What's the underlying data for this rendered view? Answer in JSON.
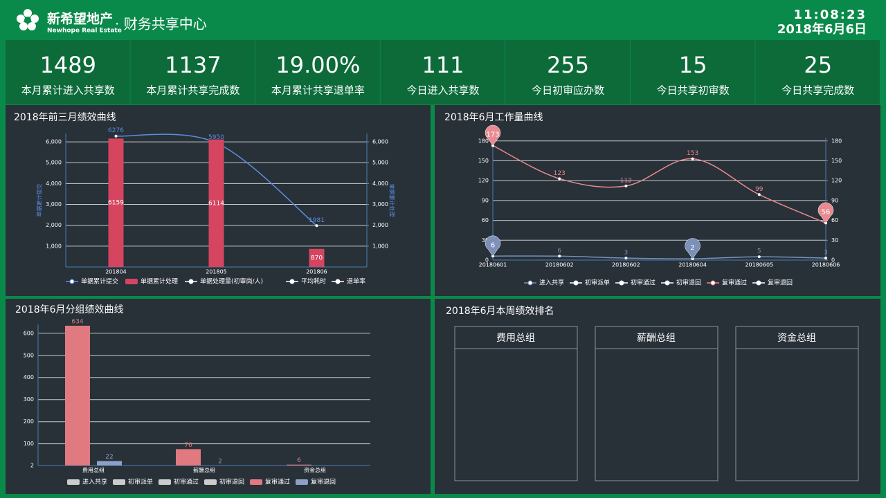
{
  "header": {
    "brand": "新希望地产",
    "brand_en": "Newhope Real Estate",
    "system": "· 财务共享中心",
    "time": "11:08:23",
    "date": "2018年6月6日"
  },
  "kpis": [
    {
      "value": "1489",
      "label": "本月累计进入共享数"
    },
    {
      "value": "1137",
      "label": "本月累计共享完成数"
    },
    {
      "value": "19.00%",
      "label": "本月累计共享退单率"
    },
    {
      "value": "111",
      "label": "今日进入共享数"
    },
    {
      "value": "255",
      "label": "今日初审应办数"
    },
    {
      "value": "15",
      "label": "今日共享初审数"
    },
    {
      "value": "25",
      "label": "今日共享完成数"
    }
  ],
  "chart_data": [
    {
      "type": "bar",
      "title": "2018年前三月绩效曲线",
      "categories": [
        "201804",
        "201805",
        "201806"
      ],
      "series": [
        {
          "name": "单据累计提交",
          "type": "line",
          "color": "#5b8fe0",
          "values": [
            6276,
            5950,
            1981
          ]
        },
        {
          "name": "单据累计处理",
          "type": "bar",
          "color": "#d64560",
          "values": [
            6159,
            6114,
            870
          ]
        },
        {
          "name": "单据处理量(初审岗/人)",
          "type": "line",
          "color": "#ffffff"
        },
        {
          "name": "平均耗时",
          "type": "line",
          "color": "#ffffff"
        },
        {
          "name": "退单率",
          "type": "line",
          "color": "#ffffff"
        }
      ],
      "ylabel": "单据累计提交",
      "y2label": "单据累计处理",
      "ylim": [
        0,
        6400
      ],
      "yticks": [
        {
          "value": 1000,
          "label": "1,000"
        },
        {
          "value": 2000,
          "label": "2,000"
        },
        {
          "value": 3000,
          "label": "3,000"
        },
        {
          "value": 4000,
          "label": "4,000"
        },
        {
          "value": 5000,
          "label": "5,000"
        },
        {
          "value": 6000,
          "label": "6,000"
        }
      ],
      "y2lim": [
        0,
        6400
      ],
      "y2ticks": [
        {
          "value": 1000,
          "label": "1,000"
        },
        {
          "value": 2000,
          "label": "2,000"
        },
        {
          "value": 3000,
          "label": "3,000"
        },
        {
          "value": 4000,
          "label": "4,000"
        },
        {
          "value": 5000,
          "label": "5,000"
        },
        {
          "value": 6000,
          "label": "6,000"
        }
      ],
      "grid": true
    },
    {
      "type": "line",
      "title": "2018年6月工作量曲线",
      "categories": [
        "20180601",
        "20180602",
        "20180602",
        "20180604",
        "20180605",
        "20180606"
      ],
      "series": [
        {
          "name": "进入共享",
          "color": "#7c90b8",
          "values": [
            6,
            6,
            3,
            2,
            5,
            3
          ]
        },
        {
          "name": "初审派单",
          "color": "#ffffff"
        },
        {
          "name": "初审通过",
          "color": "#ffffff"
        },
        {
          "name": "初审退回",
          "color": "#ffffff"
        },
        {
          "name": "复审通过",
          "color": "#e88a90",
          "values": [
            173,
            123,
            112,
            153,
            99,
            56
          ]
        },
        {
          "name": "复审退回",
          "color": "#ffffff"
        }
      ],
      "ylim": [
        0,
        185
      ],
      "yticks": [
        0,
        30,
        60,
        90,
        120,
        150,
        180
      ],
      "y2lim": [
        0,
        185
      ],
      "y2ticks": [
        0,
        30,
        60,
        90,
        120,
        150,
        180
      ],
      "grid": true
    },
    {
      "type": "bar",
      "title": "2018年6月分组绩效曲线",
      "categories": [
        "费用总组",
        "薪酬总组",
        "资金总组"
      ],
      "series": [
        {
          "name": "进入共享",
          "color": "#cccccc"
        },
        {
          "name": "初审派单",
          "color": "#cccccc"
        },
        {
          "name": "初审通过",
          "color": "#cccccc"
        },
        {
          "name": "初审退回",
          "color": "#cccccc"
        },
        {
          "name": "复审通过",
          "color": "#e07a80",
          "values": [
            634,
            76,
            6
          ]
        },
        {
          "name": "复审退回",
          "color": "#8ea0c8",
          "values": [
            22,
            2,
            null
          ]
        }
      ],
      "ylim": [
        2,
        640
      ],
      "yticks": [
        2,
        100,
        200,
        300,
        400,
        500,
        600
      ],
      "grid": true
    }
  ],
  "ranking": {
    "title": "2018年6月本周绩效排名",
    "groups": [
      "费用总组",
      "薪酬总组",
      "资金总组"
    ]
  }
}
